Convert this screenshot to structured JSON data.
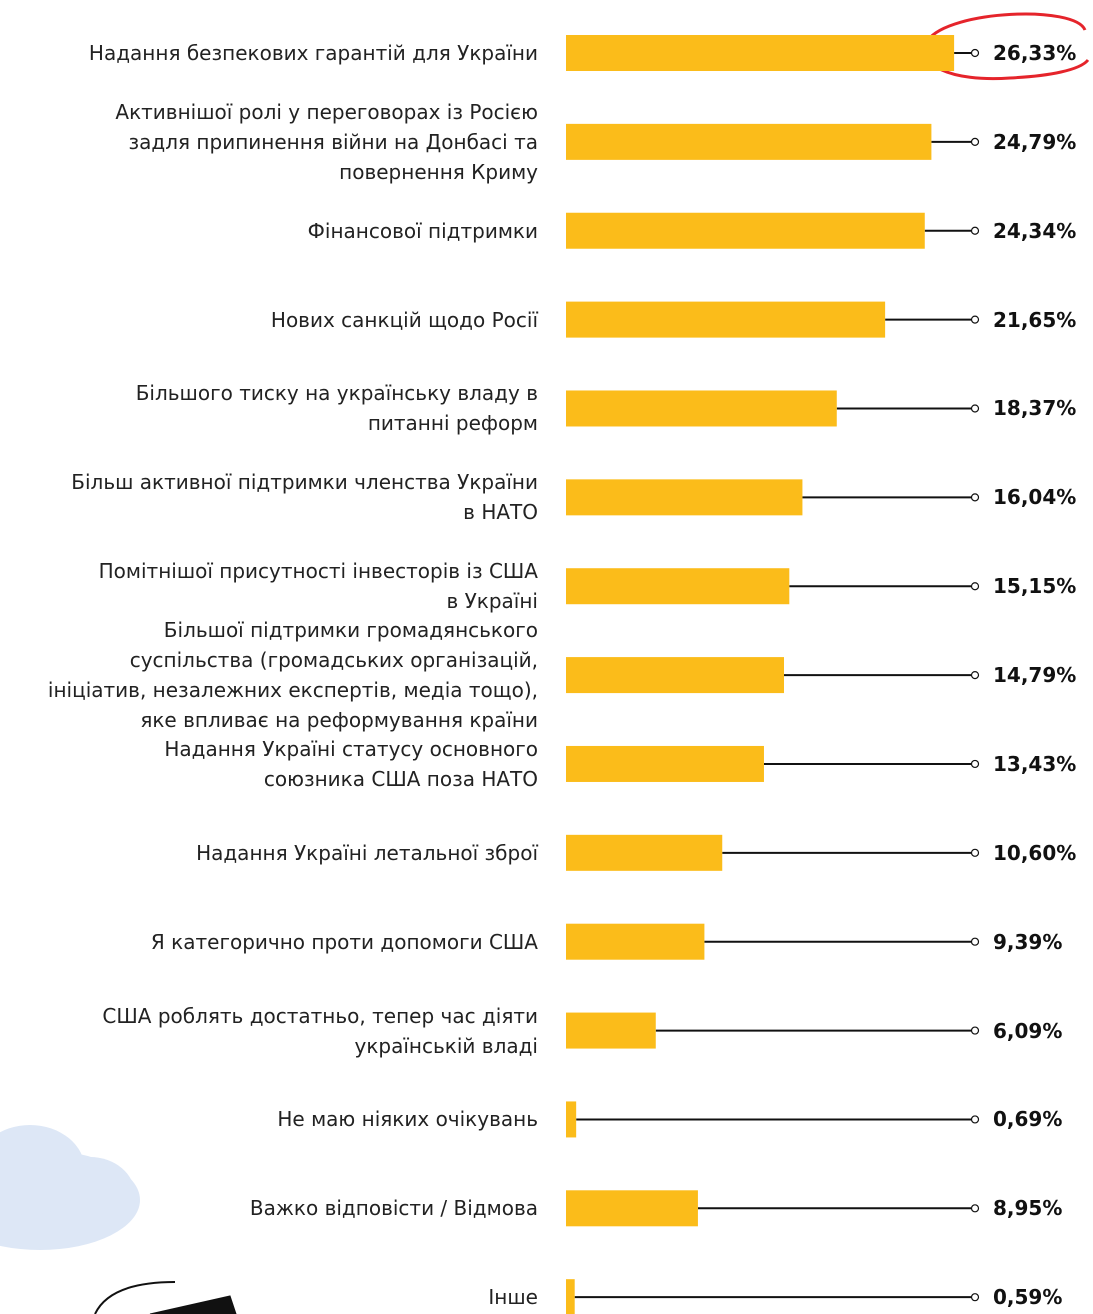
{
  "chart_data": {
    "type": "bar",
    "orientation": "horizontal",
    "color": "#fbbc1a",
    "categories": [
      "Надання безпекових гарантій для України",
      "Активнішої ролі у переговорах із Росією\nзадля припинення війни на Донбасі та\nповернення Криму",
      "Фінансової підтримки",
      "Нових санкцій щодо Росії",
      "Більшого тиску на українську владу в\nпитанні реформ",
      "Більш активної підтримки членства України\nв НАТО",
      "Помітнішої присутності інвесторів із США\nв Україні",
      "Більшої підтримки громадянського\nсуспільства (громадських організацій,\nініціатив, незалежних експертів, медіа тощо),\nяке впливає на реформування країни",
      "Надання Україні статусу основного\nсоюзника США поза НАТО",
      "Надання Україні летальної зброї",
      "Я категорично проти допомоги США",
      "США роблять достатньо, тепер час діяти\nукраїнській владі",
      "Не маю ніяких очікувань",
      "Важко відповісти / Відмова",
      "Інше"
    ],
    "values": [
      26.33,
      24.79,
      24.34,
      21.65,
      18.37,
      16.04,
      15.15,
      14.79,
      13.43,
      10.6,
      9.39,
      6.09,
      0.69,
      8.95,
      0.59
    ],
    "value_labels": [
      "26,33%",
      "24,79%",
      "24,34%",
      "21,65%",
      "18,37%",
      "16,04%",
      "15,15%",
      "14,79%",
      "13,43%",
      "10,60%",
      "9,39%",
      "6,09%",
      "0,69%",
      "8,95%",
      "0,59%"
    ]
  }
}
